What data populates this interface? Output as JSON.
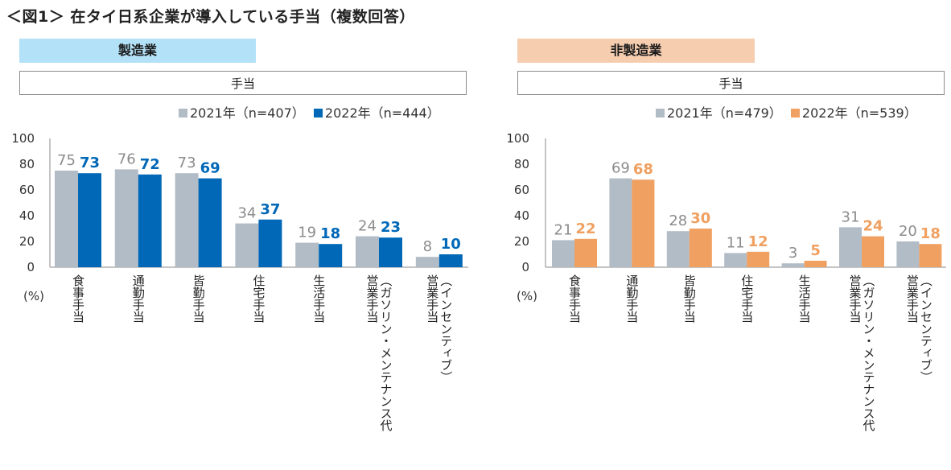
{
  "title": "＜図1＞ 在タイ日系企業が導入している手当（複数回答）",
  "colors": {
    "gray": "#b2bcc7",
    "blue": "#0068b7",
    "orange": "#f0a060",
    "mfg_header_bg": "#b3e1f7",
    "nonmfg_header_bg": "#f7cdb0",
    "axis": "#888888",
    "gray_label": "#8c8c8c"
  },
  "chart_data": [
    {
      "type": "bar",
      "section": "製造業",
      "box_label": "手当",
      "title": "",
      "ylabel": "(%)",
      "ylim": [
        0,
        100
      ],
      "yticks": [
        "0",
        "20",
        "40",
        "60",
        "80",
        "100"
      ],
      "categories": [
        "食事手当",
        "通勤手当",
        "皆勤手当",
        "住宅手当",
        "生活手当",
        "営業手当（ガソリン・メンテナンス代",
        "営業手当（インセンティブ）"
      ],
      "series": [
        {
          "name": "2021年（n=407）",
          "values": [
            75,
            76,
            73,
            34,
            19,
            24,
            8
          ]
        },
        {
          "name": "2022年（n=444）",
          "values": [
            73,
            72,
            69,
            37,
            18,
            23,
            10
          ]
        }
      ]
    },
    {
      "type": "bar",
      "section": "非製造業",
      "box_label": "手当",
      "title": "",
      "ylabel": "(%)",
      "ylim": [
        0,
        100
      ],
      "yticks": [
        "0",
        "20",
        "40",
        "60",
        "80",
        "100"
      ],
      "categories": [
        "食事手当",
        "通勤手当",
        "皆勤手当",
        "住宅手当",
        "生活手当",
        "営業手当（ガソリン・メンテナンス代",
        "営業手当（インセンティブ）"
      ],
      "series": [
        {
          "name": "2021年（n=479）",
          "values": [
            21,
            69,
            28,
            11,
            3,
            31,
            20
          ]
        },
        {
          "name": "2022年（n=539）",
          "values": [
            22,
            68,
            30,
            12,
            5,
            24,
            18
          ]
        }
      ]
    }
  ]
}
